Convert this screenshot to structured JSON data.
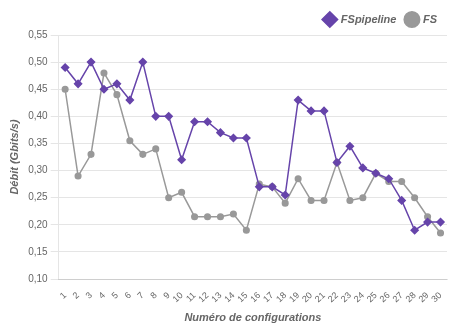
{
  "chart_data": {
    "type": "line",
    "x": [
      1,
      2,
      3,
      4,
      5,
      6,
      7,
      8,
      9,
      10,
      11,
      12,
      13,
      14,
      15,
      16,
      17,
      18,
      19,
      20,
      21,
      22,
      23,
      24,
      25,
      26,
      27,
      28,
      29,
      30
    ],
    "series": [
      {
        "name": "FSpipeline",
        "color": "#6644aa",
        "marker": "diamond",
        "values": [
          0.49,
          0.46,
          0.5,
          0.45,
          0.46,
          0.43,
          0.5,
          0.4,
          0.4,
          0.32,
          0.39,
          0.39,
          0.37,
          0.36,
          0.36,
          0.27,
          0.27,
          0.255,
          0.43,
          0.41,
          0.41,
          0.315,
          0.345,
          0.305,
          0.295,
          0.285,
          0.245,
          0.19,
          0.205,
          0.205
        ]
      },
      {
        "name": "FS",
        "color": "#999999",
        "marker": "circle",
        "values": [
          0.45,
          0.29,
          0.33,
          0.48,
          0.44,
          0.355,
          0.33,
          0.34,
          0.25,
          0.26,
          0.215,
          0.215,
          0.215,
          0.22,
          0.19,
          0.275,
          0.27,
          0.24,
          0.285,
          0.245,
          0.245,
          0.315,
          0.245,
          0.25,
          0.295,
          0.28,
          0.28,
          0.25,
          0.215,
          0.185
        ]
      }
    ],
    "x_label": "Numéro de configurations",
    "y_label": "Débit (Gbits/s)",
    "xlim": [
      0.5,
      30.5
    ],
    "xticks": [
      1,
      2,
      3,
      4,
      5,
      6,
      7,
      8,
      9,
      10,
      11,
      12,
      13,
      14,
      15,
      16,
      17,
      18,
      19,
      20,
      21,
      22,
      23,
      24,
      25,
      26,
      27,
      28,
      29,
      30
    ],
    "ylim": [
      0.1,
      0.55
    ],
    "yticks": [
      {
        "value": 0.1,
        "label": "0,10"
      },
      {
        "value": 0.15,
        "label": "0,15"
      },
      {
        "value": 0.2,
        "label": "0,20"
      },
      {
        "value": 0.25,
        "label": "0,25"
      },
      {
        "value": 0.3,
        "label": "0,30"
      },
      {
        "value": 0.35,
        "label": "0,35"
      },
      {
        "value": 0.4,
        "label": "0,40"
      },
      {
        "value": 0.45,
        "label": "0,45"
      },
      {
        "value": 0.5,
        "label": "0,50"
      },
      {
        "value": 0.55,
        "label": "0,55"
      }
    ],
    "grid": "y",
    "legend": "upper right"
  }
}
